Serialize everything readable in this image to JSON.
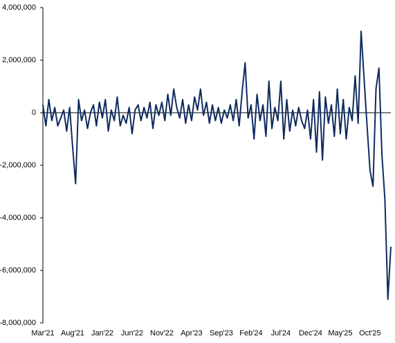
{
  "chart_data": {
    "type": "line",
    "categories": [
      "Mar'21",
      null,
      null,
      null,
      null,
      null,
      null,
      null,
      null,
      null,
      "Aug'21",
      null,
      null,
      null,
      null,
      null,
      null,
      null,
      null,
      null,
      "Jan'22",
      null,
      null,
      null,
      null,
      null,
      null,
      null,
      null,
      null,
      "Jun'22",
      null,
      null,
      null,
      null,
      null,
      null,
      null,
      null,
      null,
      "Nov'22",
      null,
      null,
      null,
      null,
      null,
      null,
      null,
      null,
      null,
      "Apr'23",
      null,
      null,
      null,
      null,
      null,
      null,
      null,
      null,
      null,
      "Sep'23",
      null,
      null,
      null,
      null,
      null,
      null,
      null,
      null,
      null,
      "Feb'24",
      null,
      null,
      null,
      null,
      null,
      null,
      null,
      null,
      null,
      "Jul'24",
      null,
      null,
      null,
      null,
      null,
      null,
      null,
      null,
      null,
      "Dec'24",
      null,
      null,
      null,
      null,
      null,
      null,
      null,
      null,
      null,
      "May'25",
      null,
      null,
      null,
      null,
      null,
      null,
      null,
      null,
      null,
      "Oct'25",
      null,
      null,
      null,
      null,
      null,
      null,
      null
    ],
    "values": [
      300000,
      -500000,
      500000,
      -300000,
      200000,
      -500000,
      -200000,
      100000,
      -700000,
      200000,
      -1300000,
      -2700000,
      500000,
      -300000,
      100000,
      -600000,
      0,
      300000,
      -500000,
      400000,
      -200000,
      500000,
      -700000,
      100000,
      -300000,
      600000,
      -500000,
      -100000,
      -400000,
      200000,
      -800000,
      100000,
      300000,
      -300000,
      200000,
      -200000,
      400000,
      -600000,
      300000,
      -100000,
      400000,
      -300000,
      700000,
      -100000,
      900000,
      200000,
      -200000,
      500000,
      -400000,
      300000,
      -300000,
      600000,
      100000,
      900000,
      -100000,
      400000,
      -400000,
      300000,
      -300000,
      200000,
      -400000,
      100000,
      -200000,
      300000,
      -300000,
      500000,
      -500000,
      800000,
      1900000,
      -200000,
      300000,
      -1000000,
      700000,
      -300000,
      300000,
      -900000,
      1200000,
      -600000,
      200000,
      -300000,
      1200000,
      -1000000,
      500000,
      -700000,
      100000,
      -500000,
      200000,
      -300000,
      -600000,
      100000,
      -1000000,
      500000,
      -1500000,
      800000,
      -1800000,
      600000,
      -400000,
      300000,
      -900000,
      900000,
      -800000,
      500000,
      -1000000,
      200000,
      -300000,
      1400000,
      -400000,
      3100000,
      1300000,
      -500000,
      -2200000,
      -2800000,
      900000,
      1700000,
      -1600000,
      -3300000,
      -7100000,
      -5100000
    ],
    "color": "#0e2a5e",
    "ylim": [
      -8000000,
      4000000
    ],
    "yticks": [
      {
        "value": -8000000,
        "label": "-8,000,000"
      },
      {
        "value": -6000000,
        "label": "-6,000,000"
      },
      {
        "value": -4000000,
        "label": "-4,000,000"
      },
      {
        "value": -2000000,
        "label": "-2,000,000"
      },
      0,
      {
        "value": 2000000,
        "label": "2,000,000"
      },
      {
        "value": 4000000,
        "label": "4,000,000"
      }
    ]
  }
}
